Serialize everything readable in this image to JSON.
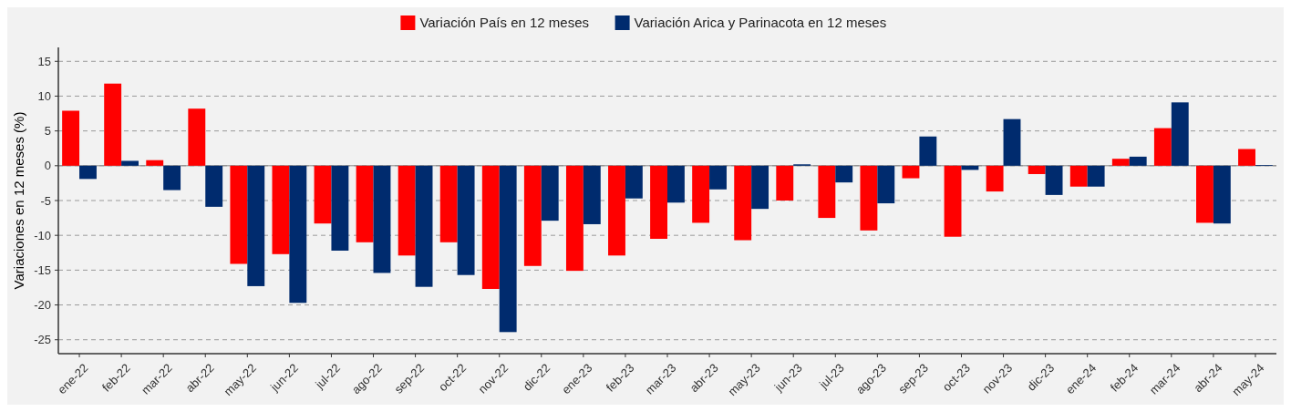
{
  "chart_data": {
    "type": "bar",
    "ylabel": "Variaciones en 12 meses (%)",
    "categories": [
      "ene-22",
      "feb-22",
      "mar-22",
      "abr-22",
      "may-22",
      "jun-22",
      "jul-22",
      "ago-22",
      "sep-22",
      "oct-22",
      "nov-22",
      "dic-22",
      "ene-23",
      "feb-23",
      "mar-23",
      "abr-23",
      "may-23",
      "jun-23",
      "jul-23",
      "ago-23",
      "sep-23",
      "oct-23",
      "nov-23",
      "dic-23",
      "ene-24",
      "feb-24",
      "mar-24",
      "abr-24",
      "may-24"
    ],
    "series": [
      {
        "name": "Variación País en 12 meses",
        "color": "#ff0000",
        "values": [
          7.9,
          11.8,
          0.8,
          8.2,
          -14.1,
          -12.7,
          -8.3,
          -11.0,
          -12.9,
          -11.0,
          -17.7,
          -14.4,
          -15.1,
          -12.9,
          -10.5,
          -8.2,
          -10.7,
          -5.0,
          -7.5,
          -9.3,
          -1.8,
          -10.2,
          -3.7,
          -1.2,
          -3.0,
          1.0,
          5.4,
          -8.2,
          2.4
        ]
      },
      {
        "name": "Variación Arica y Parinacota en 12 meses",
        "color": "#002b6e",
        "values": [
          -1.9,
          0.7,
          -3.5,
          -5.9,
          -17.3,
          -19.7,
          -12.2,
          -15.4,
          -17.4,
          -15.7,
          -23.9,
          -7.9,
          -8.4,
          -4.7,
          -5.3,
          -3.4,
          -6.2,
          0.2,
          -2.4,
          -5.4,
          4.2,
          -0.6,
          6.7,
          -4.2,
          -3.0,
          1.3,
          9.1,
          -8.3,
          0.1
        ]
      }
    ],
    "ylim": [
      -27,
      17
    ],
    "yticks": [
      -25,
      -20,
      -15,
      -10,
      -5,
      0,
      5,
      10,
      15
    ],
    "grid": "y",
    "legend": "top"
  }
}
